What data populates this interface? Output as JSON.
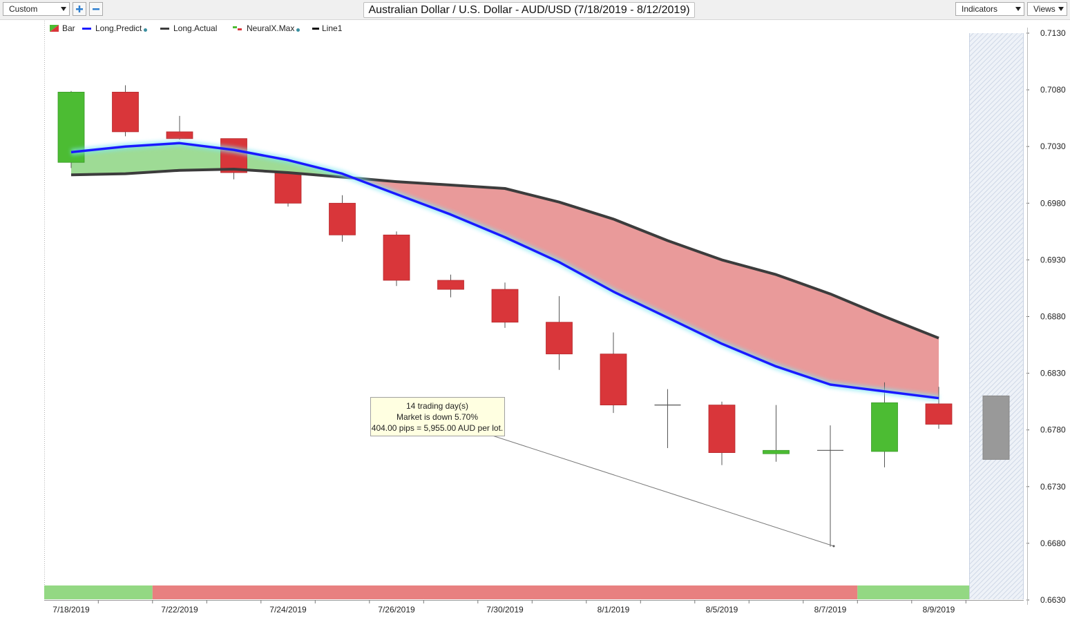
{
  "toolbar": {
    "range_select": "Custom",
    "zoom_in_icon": "plus-icon",
    "zoom_out_icon": "minus-icon",
    "title": "Australian Dollar / U.S. Dollar - AUD/USD (7/18/2019 - 8/12/2019)",
    "indicators_label": "Indicators",
    "views_label": "Views"
  },
  "legend": {
    "bar": "Bar",
    "long_predict": "Long.Predict",
    "long_actual": "Long.Actual",
    "neuralx_max": "NeuralX.Max",
    "line1": "Line1"
  },
  "annotation": {
    "line1": "14 trading day(s)",
    "line2": "Market is down 5.70%",
    "line3": "404.00 pips = 5,955.00 AUD per lot."
  },
  "colors": {
    "up": "#4cbc33",
    "down": "#d9363a",
    "predict": "#1a1aff",
    "actual": "#3c3c3c",
    "fill_up": "#9edb95",
    "fill_down": "#e99a9a",
    "band_up": "#93d883",
    "band_down": "#e88080",
    "forecast": "#999999"
  },
  "chart_data": {
    "type": "candlestick",
    "y_ticks": [
      "0.7130",
      "0.7080",
      "0.7030",
      "0.6980",
      "0.6930",
      "0.6880",
      "0.6830",
      "0.6780",
      "0.6730",
      "0.6680",
      "0.6630"
    ],
    "ylim": [
      0.663,
      0.713
    ],
    "x_ticks": [
      "7/18/2019",
      "7/22/2019",
      "7/24/2019",
      "7/26/2019",
      "7/30/2019",
      "8/1/2019",
      "8/5/2019",
      "8/7/2019",
      "8/9/2019"
    ],
    "candles": [
      {
        "date": "7/18/2019",
        "open": 0.7016,
        "high": 0.7079,
        "low": 0.7011,
        "close": 0.7078
      },
      {
        "date": "7/19/2019",
        "open": 0.7078,
        "high": 0.7084,
        "low": 0.7039,
        "close": 0.7043
      },
      {
        "date": "7/22/2019",
        "open": 0.7043,
        "high": 0.7057,
        "low": 0.7036,
        "close": 0.7037
      },
      {
        "date": "7/23/2019",
        "open": 0.7037,
        "high": 0.7037,
        "low": 0.7001,
        "close": 0.7007
      },
      {
        "date": "7/24/2019",
        "open": 0.7007,
        "high": 0.7008,
        "low": 0.6977,
        "close": 0.698
      },
      {
        "date": "7/25/2019",
        "open": 0.698,
        "high": 0.6987,
        "low": 0.6946,
        "close": 0.6952
      },
      {
        "date": "7/26/2019",
        "open": 0.6952,
        "high": 0.6955,
        "low": 0.6907,
        "close": 0.6912
      },
      {
        "date": "7/29/2019",
        "open": 0.6912,
        "high": 0.6917,
        "low": 0.6897,
        "close": 0.6904
      },
      {
        "date": "7/30/2019",
        "open": 0.6904,
        "high": 0.691,
        "low": 0.687,
        "close": 0.6875
      },
      {
        "date": "7/31/2019",
        "open": 0.6875,
        "high": 0.6898,
        "low": 0.6833,
        "close": 0.6847
      },
      {
        "date": "8/1/2019",
        "open": 0.6847,
        "high": 0.6866,
        "low": 0.6795,
        "close": 0.6802
      },
      {
        "date": "8/2/2019",
        "open": 0.6802,
        "high": 0.6816,
        "low": 0.6764,
        "close": 0.6802
      },
      {
        "date": "8/5/2019",
        "open": 0.6802,
        "high": 0.6805,
        "low": 0.6749,
        "close": 0.676
      },
      {
        "date": "8/6/2019",
        "open": 0.6759,
        "high": 0.6802,
        "low": 0.6752,
        "close": 0.6762
      },
      {
        "date": "8/7/2019",
        "open": 0.6762,
        "high": 0.6784,
        "low": 0.6677,
        "close": 0.6761
      },
      {
        "date": "8/8/2019",
        "open": 0.6761,
        "high": 0.6822,
        "low": 0.6747,
        "close": 0.6804
      },
      {
        "date": "8/9/2019",
        "open": 0.6803,
        "high": 0.6818,
        "low": 0.6781,
        "close": 0.6785
      }
    ],
    "long_predict": [
      0.7025,
      0.703,
      0.7033,
      0.7027,
      0.7018,
      0.7006,
      0.6988,
      0.697,
      0.695,
      0.6928,
      0.6902,
      0.6879,
      0.6856,
      0.6836,
      0.682,
      0.6814,
      0.6808
    ],
    "long_actual": [
      0.7005,
      0.7006,
      0.7009,
      0.701,
      0.7007,
      0.7003,
      0.6999,
      0.6996,
      0.6993,
      0.6981,
      0.6966,
      0.6947,
      0.693,
      0.6917,
      0.69,
      0.688,
      0.6861
    ],
    "forecast_bar": {
      "high": 0.681,
      "low": 0.6754
    },
    "band": [
      {
        "from": "7/18/2019",
        "to": "7/19/2019",
        "trend": "up"
      },
      {
        "from": "7/22/2019",
        "to": "8/7/2019",
        "trend": "down"
      },
      {
        "from": "8/8/2019",
        "to": "8/9/2019",
        "trend": "up"
      }
    ]
  }
}
